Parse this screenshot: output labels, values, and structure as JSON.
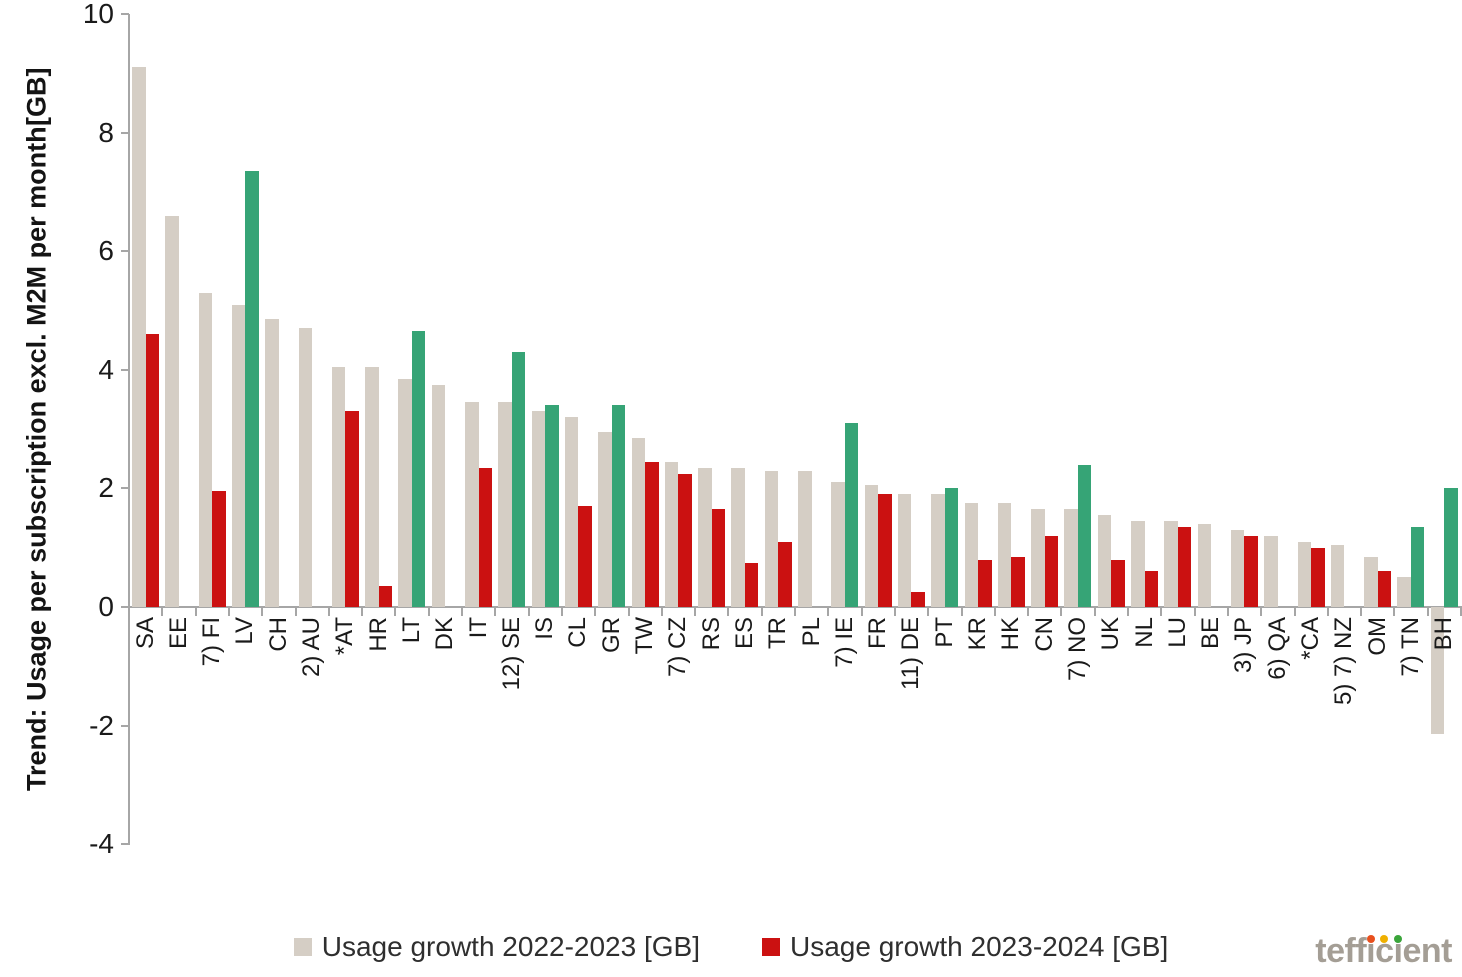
{
  "chart_data": {
    "type": "bar",
    "title": "",
    "ylabel": "Trend: Usage per subscription excl. M2M per month [GB]",
    "ylabel_line1": "Trend: Usage per subscription excl. M2M per month",
    "ylabel_line2": "[GB]",
    "xlabel": "",
    "ylim": [
      -4,
      10
    ],
    "yticks": [
      10,
      8,
      6,
      4,
      2,
      0,
      -2,
      -4
    ],
    "grid": false,
    "legend_position": "bottom",
    "categories": [
      "SA",
      "EE",
      "7) FI",
      "LV",
      "CH",
      "2) AU",
      "*AT",
      "HR",
      "LT",
      "DK",
      "IT",
      "12) SE",
      "IS",
      "CL",
      "GR",
      "TW",
      "7) CZ",
      "RS",
      "ES",
      "TR",
      "PL",
      "7) IE",
      "FR",
      "11) DE",
      "PT",
      "KR",
      "HK",
      "CN",
      "7) NO",
      "UK",
      "NL",
      "LU",
      "BE",
      "3) JP",
      "6) QA",
      "*CA",
      "5) 7) NZ",
      "OM",
      "7) TN",
      "BH"
    ],
    "series": [
      {
        "name": "Usage growth 2022-2023 [GB]",
        "color": "#d5cec5",
        "values": [
          9.1,
          6.6,
          5.3,
          5.1,
          4.85,
          4.7,
          4.05,
          4.05,
          3.85,
          3.75,
          3.45,
          3.45,
          3.3,
          3.2,
          2.95,
          2.85,
          2.45,
          2.35,
          2.35,
          2.3,
          2.3,
          2.1,
          2.05,
          1.9,
          1.9,
          1.75,
          1.75,
          1.65,
          1.65,
          1.55,
          1.45,
          1.45,
          1.4,
          1.3,
          1.2,
          1.1,
          1.05,
          0.85,
          0.5,
          -2.15
        ]
      },
      {
        "name": "Usage growth 2023-2024 [GB]",
        "color": "#cb1111",
        "highlight_color": "#36a476",
        "highlight_meaning": "growth 2023-2024 exceeds growth 2022-2023",
        "values": [
          4.6,
          null,
          1.95,
          7.35,
          null,
          null,
          3.3,
          0.35,
          4.65,
          null,
          2.35,
          4.3,
          3.4,
          1.7,
          3.4,
          2.45,
          2.25,
          1.65,
          0.75,
          1.1,
          null,
          3.1,
          1.9,
          0.25,
          2.0,
          0.8,
          0.85,
          1.2,
          2.4,
          0.8,
          0.6,
          1.35,
          null,
          1.2,
          null,
          1.0,
          null,
          0.6,
          1.35,
          2.0
        ],
        "highlight": [
          false,
          false,
          false,
          true,
          false,
          false,
          false,
          false,
          true,
          false,
          false,
          true,
          true,
          false,
          true,
          false,
          false,
          false,
          false,
          false,
          false,
          true,
          false,
          false,
          true,
          false,
          false,
          false,
          true,
          false,
          false,
          false,
          false,
          false,
          false,
          false,
          false,
          false,
          true,
          true
        ]
      }
    ]
  },
  "legend": {
    "items": [
      {
        "label": "Usage growth 2022-2023 [GB]",
        "color": "#d5cec5"
      },
      {
        "label": "Usage growth 2023-2024 [GB]",
        "color": "#cb1111"
      }
    ]
  },
  "logo": {
    "brand": "tefficient",
    "parts": [
      "teff",
      "ı",
      "c",
      "ı",
      "ent"
    ],
    "dot_colors": [
      "#e8501e",
      "#efb000",
      "#3aa53a"
    ],
    "text_color": "#a49e95"
  }
}
